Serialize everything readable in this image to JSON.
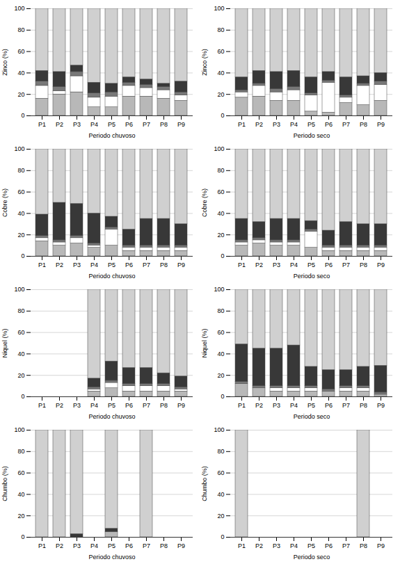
{
  "chart_data": [
    {
      "type": "bar",
      "stacked": true,
      "grid": true,
      "ylim": [
        0,
        100
      ],
      "yticks": [
        0,
        20,
        40,
        60,
        80,
        100
      ],
      "y_label": "Zinco (%)",
      "x_label": "Periodo chuvoso",
      "categories": [
        "P1",
        "P2",
        "P3",
        "P4",
        "P5",
        "P6",
        "P7",
        "P8",
        "P9"
      ],
      "series": [
        {
          "color": "#b8b8b8",
          "values": [
            16,
            20,
            22,
            8,
            8,
            18,
            18,
            16,
            14
          ]
        },
        {
          "color": "#ffffff",
          "values": [
            12,
            3,
            15,
            9,
            10,
            10,
            8,
            8,
            5
          ]
        },
        {
          "color": "#787878",
          "values": [
            4,
            4,
            4,
            4,
            4,
            3,
            3,
            3,
            3
          ]
        },
        {
          "color": "#383838",
          "values": [
            10,
            14,
            6,
            10,
            8,
            5,
            5,
            3,
            10
          ]
        },
        {
          "color": "#d0d0d0",
          "values": [
            58,
            59,
            53,
            69,
            70,
            64,
            66,
            70,
            68
          ]
        }
      ]
    },
    {
      "type": "bar",
      "stacked": true,
      "grid": true,
      "ylim": [
        0,
        100
      ],
      "yticks": [
        0,
        20,
        40,
        60,
        80,
        100
      ],
      "y_label": "Zinco (%)",
      "x_label": "Periodo seco",
      "categories": [
        "P1",
        "P2",
        "P3",
        "P4",
        "P5",
        "P6",
        "P7",
        "P8",
        "P9"
      ],
      "series": [
        {
          "color": "#b8b8b8",
          "values": [
            17,
            18,
            14,
            14,
            4,
            3,
            12,
            10,
            14
          ]
        },
        {
          "color": "#ffffff",
          "values": [
            5,
            10,
            8,
            10,
            15,
            28,
            5,
            18,
            15
          ]
        },
        {
          "color": "#787878",
          "values": [
            2,
            2,
            3,
            3,
            2,
            2,
            2,
            2,
            3
          ]
        },
        {
          "color": "#383838",
          "values": [
            12,
            12,
            16,
            15,
            15,
            8,
            17,
            7,
            8
          ]
        },
        {
          "color": "#d0d0d0",
          "values": [
            64,
            58,
            59,
            58,
            64,
            59,
            64,
            63,
            60
          ]
        }
      ]
    },
    {
      "type": "bar",
      "stacked": true,
      "grid": true,
      "ylim": [
        0,
        100
      ],
      "yticks": [
        0,
        20,
        40,
        60,
        80,
        100
      ],
      "y_label": "Cobre (%)",
      "x_label": "Periodo chuvoso",
      "categories": [
        "P1",
        "P2",
        "P3",
        "P4",
        "P5",
        "P6",
        "P7",
        "P8",
        "P9"
      ],
      "series": [
        {
          "color": "#b8b8b8",
          "values": [
            14,
            10,
            12,
            8,
            10,
            5,
            5,
            5,
            5
          ]
        },
        {
          "color": "#ffffff",
          "values": [
            3,
            3,
            5,
            2,
            15,
            3,
            3,
            3,
            3
          ]
        },
        {
          "color": "#787878",
          "values": [
            2,
            2,
            2,
            2,
            2,
            2,
            2,
            2,
            2
          ]
        },
        {
          "color": "#383838",
          "values": [
            20,
            35,
            30,
            28,
            10,
            15,
            25,
            25,
            20
          ]
        },
        {
          "color": "#d0d0d0",
          "values": [
            61,
            50,
            51,
            60,
            63,
            75,
            65,
            65,
            70
          ]
        }
      ]
    },
    {
      "type": "bar",
      "stacked": true,
      "grid": true,
      "ylim": [
        0,
        100
      ],
      "yticks": [
        0,
        20,
        40,
        60,
        80,
        100
      ],
      "y_label": "Cobre (%)",
      "x_label": "Periodo seco",
      "categories": [
        "P1",
        "P2",
        "P3",
        "P4",
        "P5",
        "P6",
        "P7",
        "P8",
        "P9"
      ],
      "series": [
        {
          "color": "#b8b8b8",
          "values": [
            10,
            12,
            10,
            10,
            8,
            5,
            5,
            5,
            5
          ]
        },
        {
          "color": "#ffffff",
          "values": [
            3,
            3,
            3,
            3,
            15,
            3,
            3,
            3,
            3
          ]
        },
        {
          "color": "#787878",
          "values": [
            2,
            2,
            2,
            2,
            2,
            2,
            2,
            2,
            2
          ]
        },
        {
          "color": "#383838",
          "values": [
            20,
            15,
            20,
            20,
            8,
            14,
            22,
            20,
            20
          ]
        },
        {
          "color": "#d0d0d0",
          "values": [
            65,
            68,
            65,
            65,
            67,
            76,
            68,
            70,
            70
          ]
        }
      ]
    },
    {
      "type": "bar",
      "stacked": true,
      "grid": true,
      "ylim": [
        0,
        100
      ],
      "yticks": [
        0,
        20,
        40,
        60,
        80,
        100
      ],
      "y_label": "Niquel (%)",
      "x_label": "Periodo chuvoso",
      "categories": [
        "P1",
        "P2",
        "P3",
        "P4",
        "P5",
        "P6",
        "P7",
        "P8",
        "P9"
      ],
      "series": [
        {
          "color": "#b8b8b8",
          "values": [
            0,
            0,
            0,
            5,
            8,
            5,
            5,
            5,
            5
          ]
        },
        {
          "color": "#ffffff",
          "values": [
            0,
            0,
            0,
            2,
            5,
            5,
            5,
            5,
            2
          ]
        },
        {
          "color": "#787878",
          "values": [
            0,
            0,
            0,
            2,
            2,
            2,
            2,
            2,
            2
          ]
        },
        {
          "color": "#383838",
          "values": [
            0,
            0,
            0,
            8,
            18,
            15,
            15,
            10,
            10
          ]
        },
        {
          "color": "#d0d0d0",
          "values": [
            0,
            0,
            0,
            83,
            67,
            73,
            73,
            78,
            81
          ]
        }
      ]
    },
    {
      "type": "bar",
      "stacked": true,
      "grid": true,
      "ylim": [
        0,
        100
      ],
      "yticks": [
        0,
        20,
        40,
        60,
        80,
        100
      ],
      "y_label": "Niquel (%)",
      "x_label": "Periodo seco",
      "categories": [
        "P1",
        "P2",
        "P3",
        "P4",
        "P5",
        "P6",
        "P7",
        "P8",
        "P9"
      ],
      "series": [
        {
          "color": "#b8b8b8",
          "values": [
            12,
            8,
            5,
            5,
            5,
            5,
            5,
            5,
            2
          ]
        },
        {
          "color": "#ffffff",
          "values": [
            0,
            0,
            3,
            3,
            3,
            0,
            3,
            3,
            0
          ]
        },
        {
          "color": "#787878",
          "values": [
            2,
            2,
            2,
            2,
            2,
            2,
            2,
            2,
            2
          ]
        },
        {
          "color": "#383838",
          "values": [
            35,
            35,
            35,
            38,
            18,
            18,
            15,
            18,
            25
          ]
        },
        {
          "color": "#d0d0d0",
          "values": [
            51,
            55,
            55,
            52,
            72,
            75,
            75,
            72,
            71
          ]
        }
      ]
    },
    {
      "type": "bar",
      "stacked": true,
      "grid": true,
      "ylim": [
        0,
        100
      ],
      "yticks": [
        0,
        20,
        40,
        60,
        80,
        100
      ],
      "y_label": "Chumbo (%)",
      "x_label": "Periodo chuvoso",
      "categories": [
        "P1",
        "P2",
        "P3",
        "P4",
        "P5",
        "P6",
        "P7",
        "P8",
        "P9"
      ],
      "series": [
        {
          "color": "#b8b8b8",
          "values": [
            0,
            0,
            0,
            0,
            5,
            0,
            0,
            0,
            0
          ]
        },
        {
          "color": "#ffffff",
          "values": [
            0,
            0,
            0,
            0,
            0,
            0,
            0,
            0,
            0
          ]
        },
        {
          "color": "#787878",
          "values": [
            0,
            0,
            0,
            0,
            0,
            0,
            0,
            0,
            0
          ]
        },
        {
          "color": "#383838",
          "values": [
            0,
            0,
            3,
            0,
            3,
            0,
            0,
            0,
            0
          ]
        },
        {
          "color": "#d0d0d0",
          "values": [
            100,
            100,
            97,
            0,
            92,
            0,
            100,
            0,
            0
          ]
        }
      ]
    },
    {
      "type": "bar",
      "stacked": true,
      "grid": true,
      "ylim": [
        0,
        100
      ],
      "yticks": [
        0,
        20,
        40,
        60,
        80,
        100
      ],
      "y_label": "Chumbo (%)",
      "x_label": "Periodo seco",
      "categories": [
        "P1",
        "P2",
        "P3",
        "P4",
        "P5",
        "P6",
        "P7",
        "P8",
        "P9"
      ],
      "series": [
        {
          "color": "#b8b8b8",
          "values": [
            0,
            0,
            0,
            0,
            0,
            0,
            0,
            0,
            0
          ]
        },
        {
          "color": "#ffffff",
          "values": [
            0,
            0,
            0,
            0,
            0,
            0,
            0,
            0,
            0
          ]
        },
        {
          "color": "#787878",
          "values": [
            0,
            0,
            0,
            0,
            0,
            0,
            0,
            0,
            0
          ]
        },
        {
          "color": "#383838",
          "values": [
            0,
            0,
            0,
            0,
            0,
            0,
            0,
            0,
            0
          ]
        },
        {
          "color": "#d0d0d0",
          "values": [
            100,
            0,
            0,
            0,
            0,
            0,
            0,
            100,
            0
          ]
        }
      ]
    }
  ]
}
